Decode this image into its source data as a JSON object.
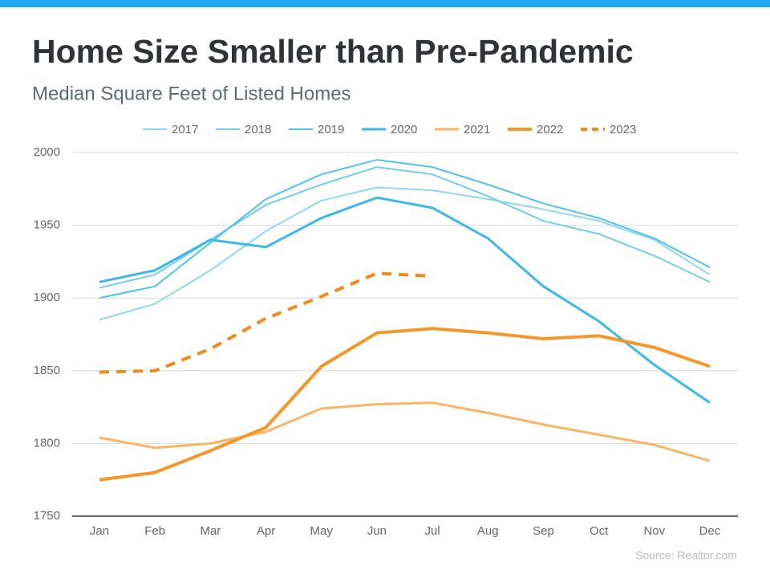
{
  "chart_data": {
    "type": "line",
    "title": "Home Size Smaller than Pre-Pandemic",
    "subtitle": "Median Square Feet of Listed Homes",
    "source": "Source: Realtor.com",
    "categories": [
      "Jan",
      "Feb",
      "Mar",
      "Apr",
      "May",
      "Jun",
      "Jul",
      "Aug",
      "Sep",
      "Oct",
      "Nov",
      "Dec"
    ],
    "ylim": [
      1750,
      2000
    ],
    "yticks": [
      1750,
      1800,
      1850,
      1900,
      1950,
      2000
    ],
    "grid": true,
    "series": [
      {
        "name": "2017",
        "color": "#8fd7f1",
        "weight": "normal",
        "style": "solid",
        "values": [
          1885,
          1896,
          1919,
          1946,
          1967,
          1976,
          1974,
          1968,
          1961,
          1953,
          1940,
          1916
        ]
      },
      {
        "name": "2018",
        "color": "#72ccee",
        "weight": "normal",
        "style": "solid",
        "values": [
          1907,
          1916,
          1940,
          1964,
          1978,
          1990,
          1985,
          1970,
          1953,
          1944,
          1929,
          1911
        ]
      },
      {
        "name": "2019",
        "color": "#4fc1eb",
        "weight": "normal",
        "style": "solid",
        "values": [
          1900,
          1908,
          1938,
          1968,
          1985,
          1995,
          1990,
          1978,
          1965,
          1955,
          1941,
          1921
        ]
      },
      {
        "name": "2020",
        "color": "#3ab8ea",
        "weight": "medium",
        "style": "solid",
        "values": [
          1911,
          1919,
          1940,
          1935,
          1955,
          1969,
          1962,
          1941,
          1908,
          1884,
          1854,
          1828
        ]
      },
      {
        "name": "2021",
        "color": "#f9b565",
        "weight": "medium",
        "style": "solid",
        "values": [
          1804,
          1797,
          1800,
          1808,
          1824,
          1827,
          1828,
          1821,
          1813,
          1806,
          1799,
          1788
        ]
      },
      {
        "name": "2022",
        "color": "#f5962b",
        "weight": "bold",
        "style": "solid",
        "values": [
          1775,
          1780,
          1795,
          1811,
          1853,
          1876,
          1879,
          1876,
          1872,
          1874,
          1866,
          1853
        ]
      },
      {
        "name": "2023",
        "color": "#f28a1a",
        "weight": "bold",
        "style": "dashed",
        "values": [
          1849,
          1850,
          1865,
          1886,
          1901,
          1917,
          1915,
          null,
          null,
          null,
          null,
          null
        ]
      }
    ]
  }
}
